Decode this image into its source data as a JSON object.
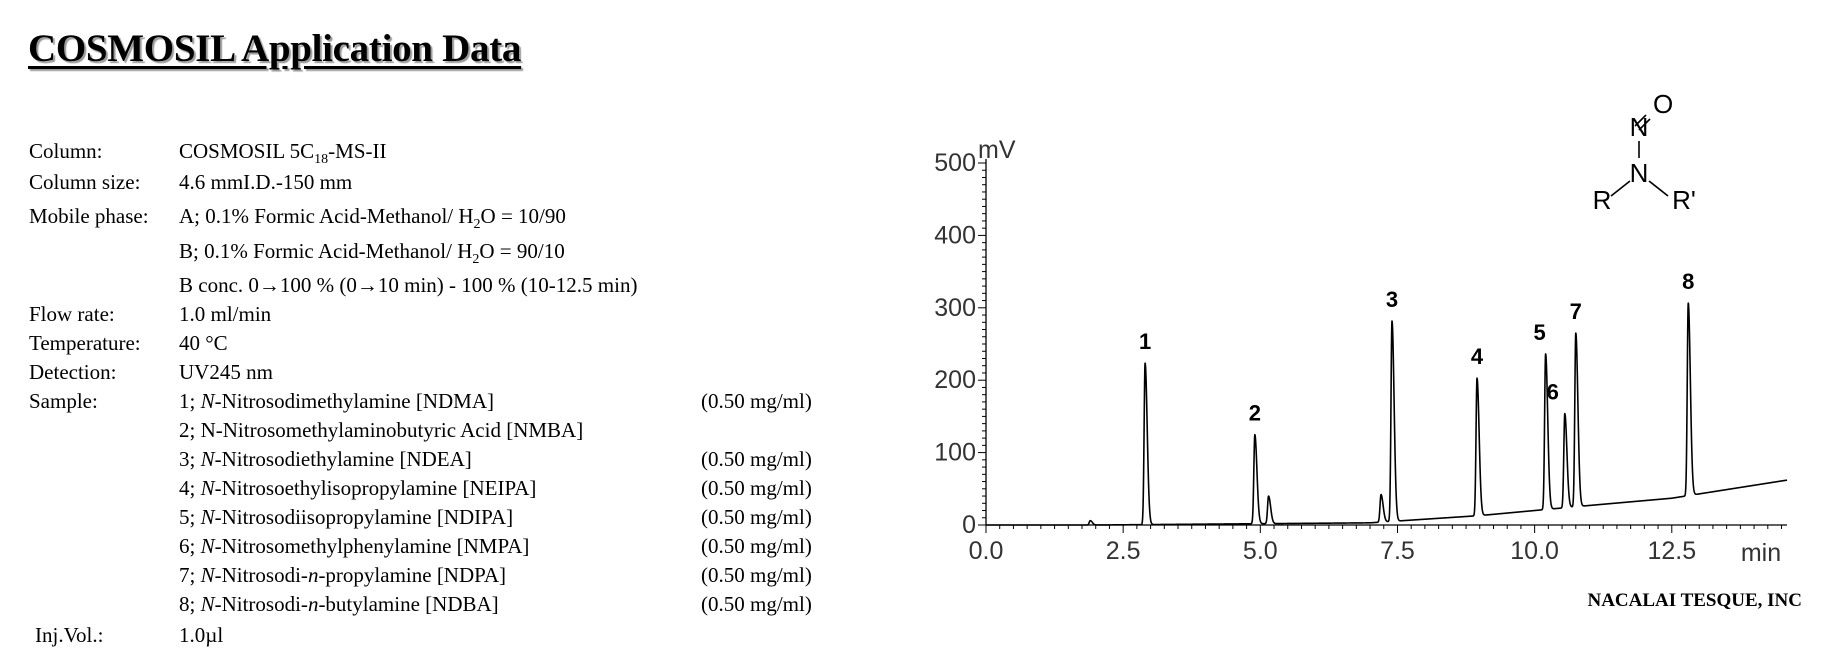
{
  "header": {
    "title": "COSMOSIL Application Data"
  },
  "conditions": {
    "column_label": "Column:",
    "column_value_pre": "COSMOSIL 5C",
    "column_value_sub": "18",
    "column_value_post": "-MS-II",
    "column_size_label": "Column size:",
    "column_size_value": "4.6 mmI.D.-150 mm",
    "mobile_phase_label": "Mobile phase:",
    "mobile_a_pre": "A; 0.1% Formic Acid-Methanol/ H",
    "mobile_a_sub": "2",
    "mobile_a_post": "O = 10/90",
    "mobile_b_pre": "B; 0.1% Formic Acid-Methanol/ H",
    "mobile_b_sub": "2",
    "mobile_b_post": "O = 90/10",
    "gradient": "B conc. 0→100 % (0→10 min) - 100 % (10-12.5 min)",
    "flow_rate_label": "Flow rate:",
    "flow_rate_value": "1.0 ml/min",
    "temperature_label": "Temperature:",
    "temperature_value": "40 °C",
    "detection_label": "Detection:",
    "detection_value": "UV245 nm",
    "sample_label": "Sample:",
    "inj_vol_label": "Inj.Vol.:",
    "inj_vol_value": "1.0µl"
  },
  "samples": [
    {
      "prefix": "1; ",
      "ital": "N",
      "rest": "-Nitrosodimethylamine [NDMA]",
      "conc": "(0.50 mg/ml)"
    },
    {
      "prefix": "2; N-Nitrosomethylaminobutyric Acid [NMBA]",
      "ital": "",
      "rest": "",
      "conc": ""
    },
    {
      "prefix": "3; ",
      "ital": "N",
      "rest": "-Nitrosodiethylamine [NDEA]",
      "conc": "(0.50 mg/ml)"
    },
    {
      "prefix": "4; ",
      "ital": "N",
      "rest": "-Nitrosoethylisopropylamine [NEIPA]",
      "conc": "(0.50 mg/ml)"
    },
    {
      "prefix": "5; ",
      "ital": "N",
      "rest": "-Nitrosodiisopropylamine [NDIPA]",
      "conc": "(0.50 mg/ml)"
    },
    {
      "prefix": "6; ",
      "ital": "N",
      "rest": "-Nitrosomethylphenylamine [NMPA]",
      "conc": "(0.50 mg/ml)"
    },
    {
      "prefix": "7; ",
      "ital": "N",
      "rest": "-Nitrosodi-",
      "ital2": "n",
      "rest2": "-propylamine [NDPA]",
      "conc": "(0.50 mg/ml)"
    },
    {
      "prefix": "8; ",
      "ital": "N",
      "rest": "-Nitrosodi-",
      "ital2": "n",
      "rest2": "-butylamine [NDBA]",
      "conc": "(0.50 mg/ml)"
    }
  ],
  "structure_labels": {
    "o": "O",
    "n_top": "N",
    "n_mid": "N",
    "r": "R",
    "r_prime": "R'"
  },
  "footer": {
    "brand": "NACALAI TESQUE, INC"
  },
  "chart_data": {
    "type": "line",
    "title": "",
    "xlabel": "min",
    "ylabel": "mV",
    "xlim": [
      0,
      14.6
    ],
    "ylim": [
      0,
      500
    ],
    "x_ticks": [
      0,
      2.5,
      5.0,
      7.5,
      10.0,
      12.5
    ],
    "x_tick_labels": [
      "0.0",
      "2.5",
      "5.0",
      "7.5",
      "10.0",
      "12.5"
    ],
    "y_ticks": [
      0,
      100,
      200,
      300,
      400,
      500
    ],
    "y_tick_labels": [
      "0",
      "100",
      "200",
      "300",
      "400",
      "500"
    ],
    "baseline": [
      [
        0,
        0
      ],
      [
        2.0,
        0
      ],
      [
        7.0,
        3
      ],
      [
        9.0,
        13
      ],
      [
        11.0,
        27
      ],
      [
        12.5,
        37
      ],
      [
        14.6,
        62
      ]
    ],
    "peaks": [
      {
        "label": "1",
        "rt": 2.9,
        "height": 223
      },
      {
        "label": "2",
        "rt": 4.9,
        "height": 123
      },
      {
        "label": "3",
        "rt": 7.4,
        "height": 277
      },
      {
        "label": "4",
        "rt": 8.95,
        "height": 190
      },
      {
        "label": "5",
        "rt": 10.2,
        "height": 215
      },
      {
        "label": "6",
        "rt": 10.55,
        "height": 130
      },
      {
        "label": "7",
        "rt": 10.75,
        "height": 240
      },
      {
        "label": "8",
        "rt": 12.8,
        "height": 266
      }
    ],
    "minor_peaks": [
      {
        "rt": 1.9,
        "height": 6
      },
      {
        "rt": 5.15,
        "height": 38
      },
      {
        "rt": 7.2,
        "height": 38
      }
    ],
    "grid": false,
    "legend": "none"
  }
}
